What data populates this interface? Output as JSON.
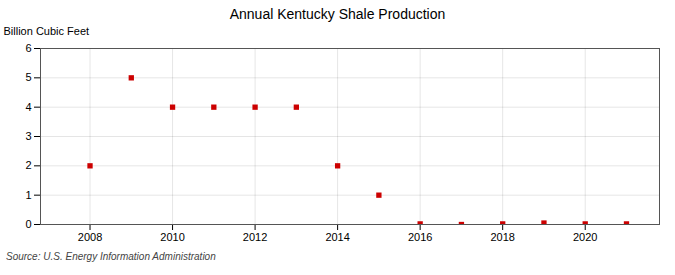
{
  "chart_data": {
    "type": "scatter",
    "title": "Annual Kentucky Shale Production",
    "ylabel": "Billion Cubic Feet",
    "annotation": "Source: U.S. Energy Information Administration",
    "x": [
      2008,
      2009,
      2010,
      2011,
      2012,
      2013,
      2014,
      2015,
      2016,
      2017,
      2018,
      2019,
      2020,
      2021
    ],
    "values": [
      2.0,
      5.0,
      4.0,
      4.0,
      4.0,
      4.0,
      2.0,
      1.0,
      0.02,
      0.0,
      0.02,
      0.05,
      0.02,
      0.02
    ],
    "color": "#cc0000",
    "marker": "square",
    "xlim": [
      2006.8,
      2021.8
    ],
    "ylim": [
      0,
      6
    ],
    "xticks": [
      2008,
      2010,
      2012,
      2014,
      2016,
      2018,
      2020
    ],
    "yticks": [
      0,
      1,
      2,
      3,
      4,
      5,
      6
    ],
    "grid": true
  }
}
